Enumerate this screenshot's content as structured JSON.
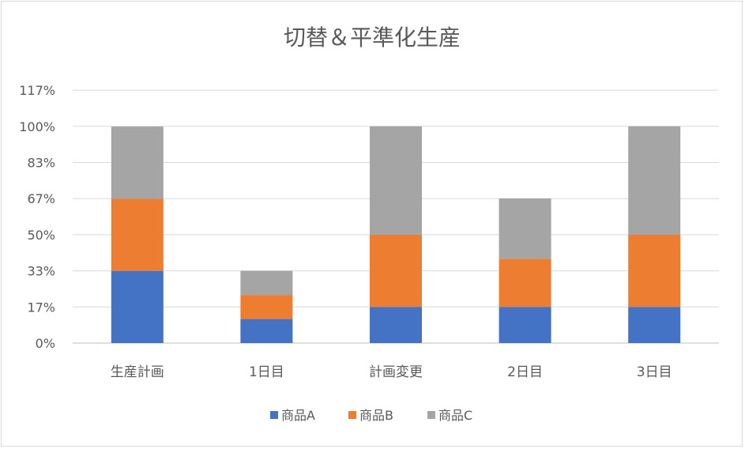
{
  "chart_data": {
    "type": "bar",
    "stacked": true,
    "title": "切替＆平準化生産",
    "xlabel": "",
    "ylabel": "",
    "ylim": [
      0,
      117
    ],
    "yticks": [
      "0%",
      "17%",
      "33%",
      "50%",
      "67%",
      "83%",
      "100%",
      "117%"
    ],
    "ytick_values": [
      0,
      16.67,
      33.33,
      50,
      66.67,
      83.33,
      100,
      116.67
    ],
    "categories": [
      "生産計画",
      "1日目",
      "計画変更",
      "2日目",
      "3日目"
    ],
    "series": [
      {
        "name": "商品A",
        "color": "#4472c4",
        "values": [
          33.3,
          11.1,
          16.7,
          16.7,
          16.7
        ]
      },
      {
        "name": "商品B",
        "color": "#ed7d31",
        "values": [
          33.3,
          11.1,
          33.3,
          22.2,
          33.3
        ]
      },
      {
        "name": "商品C",
        "color": "#a5a5a5",
        "values": [
          33.3,
          11.1,
          50.0,
          27.8,
          50.0
        ]
      }
    ],
    "grid": true,
    "legend_position": "bottom"
  }
}
